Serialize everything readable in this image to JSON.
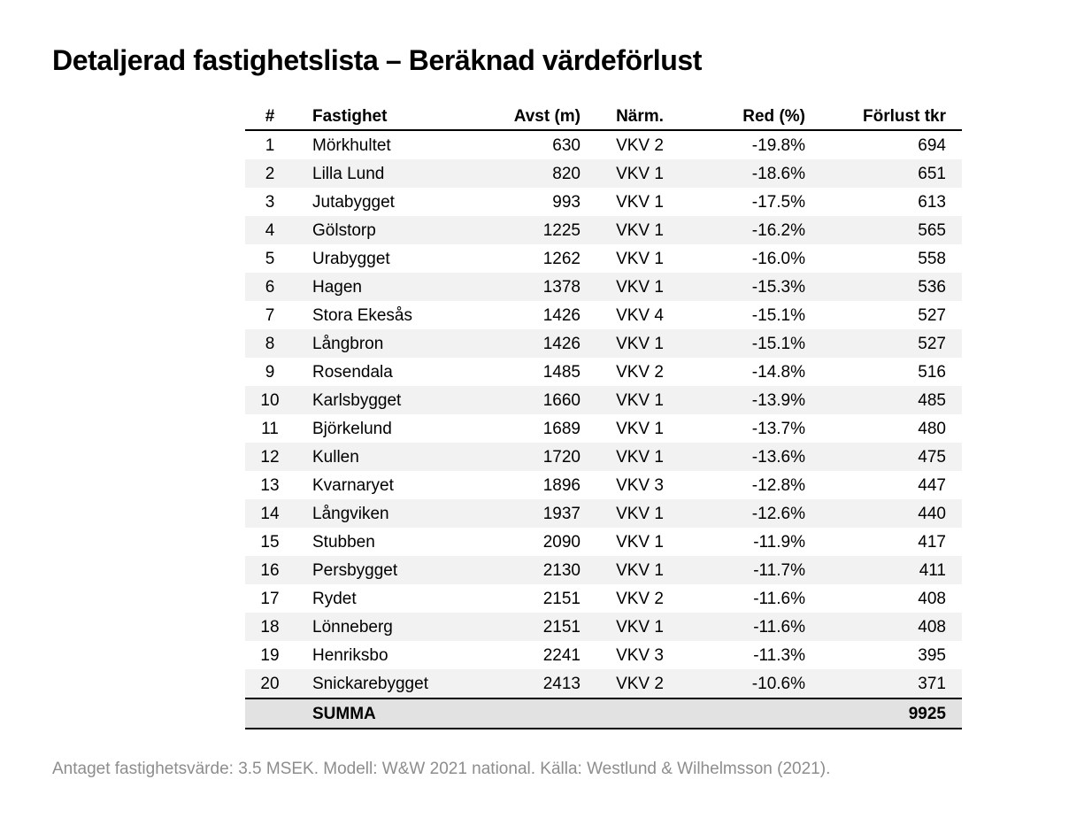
{
  "title": "Detaljerad fastighetslista – Beräknad värdeförlust",
  "table": {
    "columns": [
      "#",
      "Fastighet",
      "Avst (m)",
      "Närm.",
      "Red (%)",
      "Förlust tkr"
    ],
    "rows": [
      [
        "1",
        "Mörkhultet",
        "630",
        "VKV 2",
        "-19.8%",
        "694"
      ],
      [
        "2",
        "Lilla Lund",
        "820",
        "VKV 1",
        "-18.6%",
        "651"
      ],
      [
        "3",
        "Jutabygget",
        "993",
        "VKV 1",
        "-17.5%",
        "613"
      ],
      [
        "4",
        "Gölstorp",
        "1225",
        "VKV 1",
        "-16.2%",
        "565"
      ],
      [
        "5",
        "Urabygget",
        "1262",
        "VKV 1",
        "-16.0%",
        "558"
      ],
      [
        "6",
        "Hagen",
        "1378",
        "VKV 1",
        "-15.3%",
        "536"
      ],
      [
        "7",
        "Stora Ekesås",
        "1426",
        "VKV 4",
        "-15.1%",
        "527"
      ],
      [
        "8",
        "Långbron",
        "1426",
        "VKV 1",
        "-15.1%",
        "527"
      ],
      [
        "9",
        "Rosendala",
        "1485",
        "VKV 2",
        "-14.8%",
        "516"
      ],
      [
        "10",
        "Karlsbygget",
        "1660",
        "VKV 1",
        "-13.9%",
        "485"
      ],
      [
        "11",
        "Björkelund",
        "1689",
        "VKV 1",
        "-13.7%",
        "480"
      ],
      [
        "12",
        "Kullen",
        "1720",
        "VKV 1",
        "-13.6%",
        "475"
      ],
      [
        "13",
        "Kvarnaryet",
        "1896",
        "VKV 3",
        "-12.8%",
        "447"
      ],
      [
        "14",
        "Långviken",
        "1937",
        "VKV 1",
        "-12.6%",
        "440"
      ],
      [
        "15",
        "Stubben",
        "2090",
        "VKV 1",
        "-11.9%",
        "417"
      ],
      [
        "16",
        "Persbygget",
        "2130",
        "VKV 1",
        "-11.7%",
        "411"
      ],
      [
        "17",
        "Rydet",
        "2151",
        "VKV 2",
        "-11.6%",
        "408"
      ],
      [
        "18",
        "Lönneberg",
        "2151",
        "VKV 1",
        "-11.6%",
        "408"
      ],
      [
        "19",
        "Henriksbo",
        "2241",
        "VKV 3",
        "-11.3%",
        "395"
      ],
      [
        "20",
        "Snickarebygget",
        "2413",
        "VKV 2",
        "-10.6%",
        "371"
      ]
    ],
    "summary": {
      "label": "SUMMA",
      "total": "9925"
    }
  },
  "footer": "Antaget fastighetsvärde: 3.5 MSEK. Modell: W&W 2021 national. Källa: Westlund & Wilhelmsson (2021).",
  "colors": {
    "stripe": "#f2f2f2",
    "summary_bg": "#e2e2e2",
    "border_color": "#000000",
    "footer_text": "#8d8d8d",
    "text": "#000000"
  }
}
